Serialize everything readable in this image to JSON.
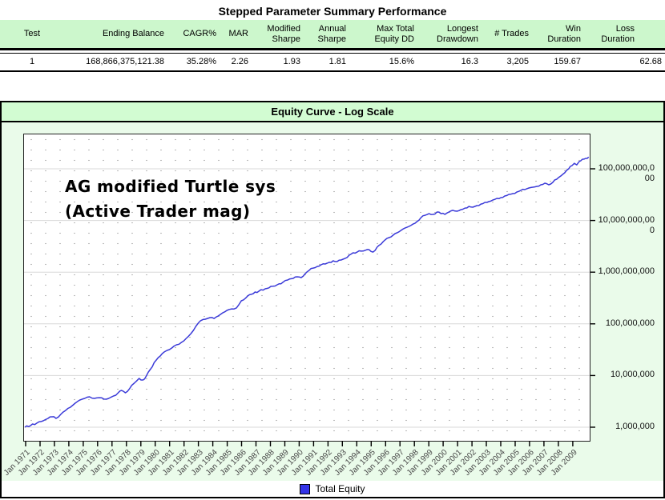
{
  "page": {
    "title": "Stepped Parameter Summary Performance"
  },
  "summary_table": {
    "columns": [
      {
        "label_lines": [
          "Test"
        ],
        "value": "1"
      },
      {
        "label_lines": [
          "Ending Balance"
        ],
        "value": "168,866,375,121.38"
      },
      {
        "label_lines": [
          "CAGR%"
        ],
        "value": "35.28%"
      },
      {
        "label_lines": [
          "MAR"
        ],
        "value": "2.26"
      },
      {
        "label_lines": [
          "Modified",
          "Sharpe"
        ],
        "value": "1.93"
      },
      {
        "label_lines": [
          "Annual",
          "Sharpe"
        ],
        "value": "1.81"
      },
      {
        "label_lines": [
          "Max Total",
          "Equity DD"
        ],
        "value": "15.6%"
      },
      {
        "label_lines": [
          "Longest",
          "Drawdown"
        ],
        "value": "16.3"
      },
      {
        "label_lines": [
          "# Trades"
        ],
        "value": "3,205"
      },
      {
        "label_lines": [
          "Win",
          "Duration"
        ],
        "value": "159.67"
      },
      {
        "label_lines": [
          "Loss",
          "Duration"
        ],
        "value": "62.68"
      }
    ]
  },
  "chart": {
    "title": "Equity Curve - Log Scale",
    "annotation_lines": [
      "AG modified Turtle sys",
      "(Active Trader mag)"
    ],
    "legend": {
      "label": "Total Equity",
      "color": "#3333e8"
    },
    "colors": {
      "panel_bg": "#eafbea",
      "titlebar_bg": "#d2fcd2",
      "curve": "#3b3bd8",
      "gridline": "#d8d8d8"
    }
  },
  "chart_data": {
    "type": "line",
    "title": "Equity Curve - Log Scale",
    "y_scale": "log",
    "ylim": [
      1000000,
      100000000000
    ],
    "grid": "horizontal solid decade lines + dot matrix",
    "legend_position": "bottom-center",
    "y_ticks": [
      "1,000,000",
      "10,000,000",
      "100,000,000",
      "1,000,000,000",
      "10,000,000,000",
      "100,000,000,000"
    ],
    "y_tick_values": [
      1000000,
      10000000,
      100000000,
      1000000000,
      10000000000,
      100000000000
    ],
    "x_ticks": [
      "Jan 1971",
      "Jan 1972",
      "Jan 1973",
      "Jan 1974",
      "Jan 1975",
      "Jan 1976",
      "Jan 1977",
      "Jan 1978",
      "Jan 1979",
      "Jan 1980",
      "Jan 1981",
      "Jan 1982",
      "Jan 1983",
      "Jan 1984",
      "Jan 1985",
      "Jan 1986",
      "Jan 1987",
      "Jan 1988",
      "Jan 1989",
      "Jan 1990",
      "Jan 1991",
      "Jan 1992",
      "Jan 1993",
      "Jan 1994",
      "Jan 1995",
      "Jan 1996",
      "Jan 1997",
      "Jan 1998",
      "Jan 1999",
      "Jan 2000",
      "Jan 2001",
      "Jan 2002",
      "Jan 2003",
      "Jan 2004",
      "Jan 2005",
      "Jan 2006",
      "Jan 2007",
      "Jan 2008",
      "Jan 2009"
    ],
    "series": [
      {
        "name": "Total Equity",
        "color": "#3b3bd8",
        "points": [
          [
            1970.95,
            1000000
          ],
          [
            1971.33,
            1070000
          ],
          [
            1971.78,
            1200000
          ],
          [
            1972.22,
            1330000
          ],
          [
            1972.55,
            1480000
          ],
          [
            1972.83,
            1590000
          ],
          [
            1973.11,
            1480000
          ],
          [
            1973.44,
            1770000
          ],
          [
            1973.77,
            2110000
          ],
          [
            1974.11,
            2440000
          ],
          [
            1974.44,
            2910000
          ],
          [
            1974.77,
            3360000
          ],
          [
            1975.1,
            3610000
          ],
          [
            1975.44,
            3870000
          ],
          [
            1975.77,
            3610000
          ],
          [
            1976.1,
            3730000
          ],
          [
            1976.44,
            3500000
          ],
          [
            1976.77,
            3610000
          ],
          [
            1977.1,
            4020000
          ],
          [
            1977.43,
            4630000
          ],
          [
            1977.66,
            5150000
          ],
          [
            1977.93,
            4630000
          ],
          [
            1978.21,
            5530000
          ],
          [
            1978.54,
            7100000
          ],
          [
            1978.88,
            8790000
          ],
          [
            1979.15,
            8190000
          ],
          [
            1979.38,
            9790000
          ],
          [
            1979.65,
            13000000
          ],
          [
            1979.93,
            17900000
          ],
          [
            1980.21,
            22200000
          ],
          [
            1980.49,
            26600000
          ],
          [
            1980.82,
            30600000
          ],
          [
            1981.15,
            34100000
          ],
          [
            1981.48,
            39300000
          ],
          [
            1981.82,
            43700000
          ],
          [
            1982.15,
            52200000
          ],
          [
            1982.48,
            64700000
          ],
          [
            1982.82,
            89200000
          ],
          [
            1983.15,
            115000000
          ],
          [
            1983.48,
            123000000
          ],
          [
            1983.81,
            132000000
          ],
          [
            1984.09,
            127000000
          ],
          [
            1984.37,
            142000000
          ],
          [
            1984.7,
            164000000
          ],
          [
            1984.98,
            182000000
          ],
          [
            1985.31,
            195000000
          ],
          [
            1985.64,
            203000000
          ],
          [
            1985.98,
            279000000
          ],
          [
            1986.42,
            346000000
          ],
          [
            1986.81,
            385000000
          ],
          [
            1987.2,
            428000000
          ],
          [
            1987.64,
            476000000
          ],
          [
            1988.03,
            530000000
          ],
          [
            1988.47,
            569000000
          ],
          [
            1988.86,
            634000000
          ],
          [
            1989.2,
            705000000
          ],
          [
            1989.58,
            757000000
          ],
          [
            1989.86,
            813000000
          ],
          [
            1990.14,
            785000000
          ],
          [
            1990.42,
            938000000
          ],
          [
            1990.69,
            1080000000
          ],
          [
            1990.97,
            1200000000
          ],
          [
            1991.25,
            1290000000
          ],
          [
            1991.52,
            1390000000
          ],
          [
            1991.8,
            1440000000
          ],
          [
            1992.08,
            1550000000
          ],
          [
            1992.36,
            1660000000
          ],
          [
            1992.63,
            1600000000
          ],
          [
            1992.91,
            1720000000
          ],
          [
            1993.19,
            1850000000
          ],
          [
            1993.47,
            2130000000
          ],
          [
            1993.74,
            2370000000
          ],
          [
            1994.02,
            2450000000
          ],
          [
            1994.3,
            2550000000
          ],
          [
            1994.58,
            2640000000
          ],
          [
            1994.85,
            2730000000
          ],
          [
            1995.13,
            2450000000
          ],
          [
            1995.41,
            3040000000
          ],
          [
            1995.69,
            3510000000
          ],
          [
            1995.96,
            4190000000
          ],
          [
            1996.24,
            4660000000
          ],
          [
            1996.52,
            5190000000
          ],
          [
            1996.8,
            5780000000
          ],
          [
            1997.07,
            6430000000
          ],
          [
            1997.35,
            7150000000
          ],
          [
            1997.63,
            7680000000
          ],
          [
            1997.91,
            8550000000
          ],
          [
            1998.18,
            9510000000
          ],
          [
            1998.46,
            11400000000
          ],
          [
            1998.74,
            12600000000
          ],
          [
            1999.02,
            13600000000
          ],
          [
            1999.29,
            13100000000
          ],
          [
            1999.57,
            14600000000
          ],
          [
            1999.85,
            13600000000
          ],
          [
            2000.12,
            13100000000
          ],
          [
            2000.4,
            14600000000
          ],
          [
            2000.68,
            15700000000
          ],
          [
            2000.96,
            15100000000
          ],
          [
            2001.23,
            16200000000
          ],
          [
            2001.51,
            17400000000
          ],
          [
            2001.79,
            18700000000
          ],
          [
            2002.06,
            18100000000
          ],
          [
            2002.34,
            19400000000
          ],
          [
            2002.62,
            20800000000
          ],
          [
            2002.9,
            22400000000
          ],
          [
            2003.17,
            23200000000
          ],
          [
            2003.45,
            24900000000
          ],
          [
            2003.73,
            26700000000
          ],
          [
            2004.01,
            27700000000
          ],
          [
            2004.28,
            29800000000
          ],
          [
            2004.56,
            32000000000
          ],
          [
            2004.84,
            33100000000
          ],
          [
            2005.12,
            35600000000
          ],
          [
            2005.39,
            38200000000
          ],
          [
            2005.67,
            39600000000
          ],
          [
            2005.95,
            42500000000
          ],
          [
            2006.23,
            44100000000
          ],
          [
            2006.5,
            45700000000
          ],
          [
            2006.78,
            49100000000
          ],
          [
            2007.06,
            52700000000
          ],
          [
            2007.33,
            49100000000
          ],
          [
            2007.61,
            54600000000
          ],
          [
            2007.89,
            63000000000
          ],
          [
            2008.17,
            72600000000
          ],
          [
            2008.44,
            83700000000
          ],
          [
            2008.72,
            100000000000
          ],
          [
            2008.94,
            115000000000
          ],
          [
            2009.11,
            128000000000
          ],
          [
            2009.28,
            119000000000
          ],
          [
            2009.44,
            138000000000
          ],
          [
            2009.67,
            153000000000
          ],
          [
            2009.89,
            159000000000
          ],
          [
            2010.11,
            168866375121
          ]
        ]
      }
    ]
  }
}
